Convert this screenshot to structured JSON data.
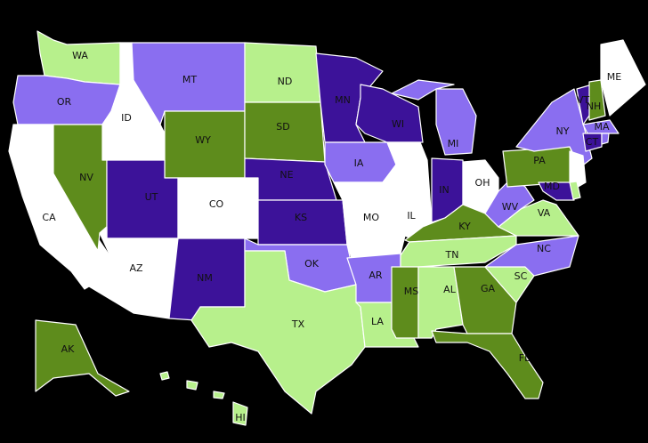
{
  "states": [
    {
      "label": "WA",
      "color": "#b7f08c"
    },
    {
      "label": "OR",
      "color": "#8a6ef0"
    },
    {
      "label": "CA",
      "color": "#ffffff"
    },
    {
      "label": "NV",
      "color": "#5e8c1c"
    },
    {
      "label": "ID",
      "color": "#ffffff"
    },
    {
      "label": "MT",
      "color": "#8a6ef0"
    },
    {
      "label": "WY",
      "color": "#5e8c1c"
    },
    {
      "label": "UT",
      "color": "#3c1299"
    },
    {
      "label": "AZ",
      "color": "#ffffff"
    },
    {
      "label": "CO",
      "color": "#ffffff"
    },
    {
      "label": "NM",
      "color": "#3c1299"
    },
    {
      "label": "ND",
      "color": "#b7f08c"
    },
    {
      "label": "SD",
      "color": "#5e8c1c"
    },
    {
      "label": "NE",
      "color": "#3c1299"
    },
    {
      "label": "KS",
      "color": "#3c1299"
    },
    {
      "label": "OK",
      "color": "#8a6ef0"
    },
    {
      "label": "TX",
      "color": "#b7f08c"
    },
    {
      "label": "MN",
      "color": "#3c1299"
    },
    {
      "label": "IA",
      "color": "#8a6ef0"
    },
    {
      "label": "MO",
      "color": "#ffffff"
    },
    {
      "label": "AR",
      "color": "#8a6ef0"
    },
    {
      "label": "LA",
      "color": "#b7f08c"
    },
    {
      "label": "WI",
      "color": "#3c1299"
    },
    {
      "label": "IL",
      "color": "#ffffff"
    },
    {
      "label": "MI",
      "color": "#8a6ef0"
    },
    {
      "label": "IN",
      "color": "#3c1299"
    },
    {
      "label": "OH",
      "color": "#ffffff"
    },
    {
      "label": "KY",
      "color": "#5e8c1c"
    },
    {
      "label": "TN",
      "color": "#b7f08c"
    },
    {
      "label": "MS",
      "color": "#5e8c1c"
    },
    {
      "label": "AL",
      "color": "#b7f08c"
    },
    {
      "label": "GA",
      "color": "#5e8c1c"
    },
    {
      "label": "FL",
      "color": "#5e8c1c"
    },
    {
      "label": "SC",
      "color": "#b7f08c"
    },
    {
      "label": "NC",
      "color": "#8a6ef0"
    },
    {
      "label": "VA",
      "color": "#b7f08c"
    },
    {
      "label": "WV",
      "color": "#8a6ef0"
    },
    {
      "label": "PA",
      "color": "#5e8c1c"
    },
    {
      "label": "NY",
      "color": "#8a6ef0"
    },
    {
      "label": "VT",
      "color": "#3c1299"
    },
    {
      "label": "NH",
      "color": "#5e8c1c"
    },
    {
      "label": "ME",
      "color": "#ffffff"
    },
    {
      "label": "MA",
      "color": "#8a6ef0"
    },
    {
      "label": "CT",
      "color": "#3c1299"
    },
    {
      "label": "MD",
      "color": "#3c1299"
    },
    {
      "label": "AK",
      "color": "#5e8c1c"
    },
    {
      "label": "HI",
      "color": "#b7f08c"
    }
  ]
}
